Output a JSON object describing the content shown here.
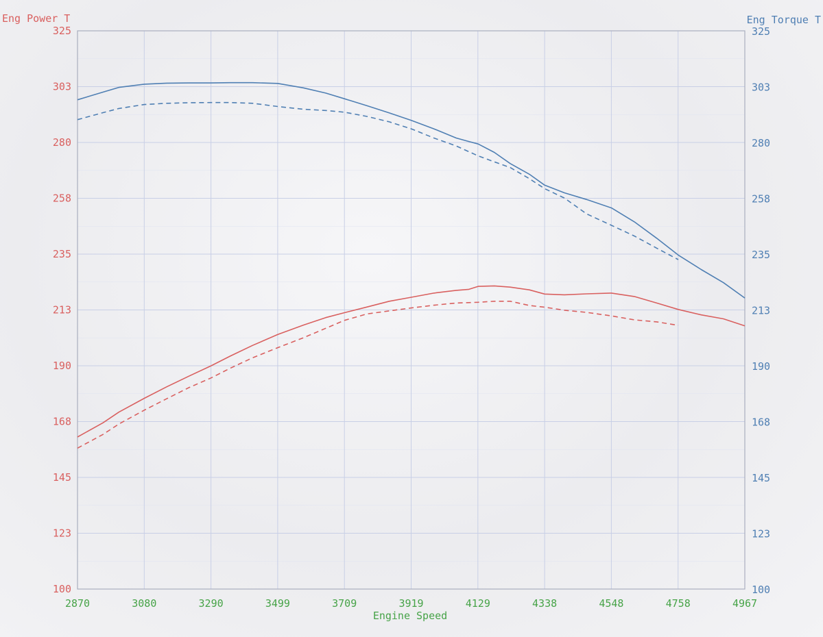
{
  "colors": {
    "power": "#d9605f",
    "torque": "#4f7fb3",
    "xaxis": "#46a347",
    "grid": "#c8cfe6",
    "axis": "#a9aebf"
  },
  "chart_data": {
    "type": "line",
    "title": "",
    "xlabel": "Engine Speed",
    "ylabel_left": "Eng Power T",
    "ylabel_right": "Eng Torque T",
    "xlim": [
      2870,
      4967
    ],
    "ylim_left": [
      100,
      325
    ],
    "ylim_right": [
      100,
      325
    ],
    "x_ticks": [
      "2870",
      "3080",
      "3290",
      "3499",
      "3709",
      "3919",
      "4129",
      "4338",
      "4548",
      "4758",
      "4967"
    ],
    "y_ticks_left": [
      "100",
      "123",
      "145",
      "168",
      "190",
      "213",
      "235",
      "258",
      "280",
      "303",
      "325"
    ],
    "y_ticks_right": [
      "100",
      "123",
      "145",
      "168",
      "190",
      "213",
      "235",
      "258",
      "280",
      "303",
      "325"
    ],
    "grid": true,
    "series": [
      {
        "axis": "right",
        "quantity": "torque",
        "style": "solid",
        "x": [
          2870,
          2950,
          3000,
          3080,
          3150,
          3220,
          3290,
          3350,
          3420,
          3499,
          3580,
          3650,
          3709,
          3780,
          3850,
          3919,
          3990,
          4060,
          4100,
          4129,
          4180,
          4230,
          4290,
          4338,
          4400,
          4470,
          4548,
          4620,
          4690,
          4758,
          4830,
          4900,
          4967
        ],
        "y": [
          297.2,
          300.3,
          302.2,
          303.5,
          303.9,
          304.0,
          304.0,
          304.1,
          304.1,
          303.8,
          302.0,
          299.9,
          297.6,
          294.8,
          291.9,
          288.9,
          285.5,
          281.8,
          280.4,
          279.4,
          276.0,
          271.5,
          267.2,
          262.8,
          259.7,
          257.0,
          253.6,
          248.0,
          241.4,
          234.6,
          228.8,
          223.5,
          217.3
        ]
      },
      {
        "axis": "right",
        "quantity": "torque",
        "style": "dashed",
        "x": [
          2870,
          2950,
          3000,
          3080,
          3150,
          3220,
          3290,
          3350,
          3420,
          3499,
          3580,
          3650,
          3709,
          3780,
          3850,
          3919,
          3990,
          4060,
          4129,
          4180,
          4230,
          4290,
          4338,
          4400,
          4470,
          4548,
          4620,
          4690,
          4758
        ],
        "y": [
          289.2,
          292.0,
          293.7,
          295.3,
          295.8,
          296.0,
          296.1,
          296.1,
          295.8,
          294.5,
          293.4,
          292.9,
          292.2,
          290.5,
          288.3,
          285.5,
          281.8,
          278.6,
          274.6,
          272.2,
          269.9,
          265.4,
          261.4,
          257.6,
          251.2,
          246.6,
          242.3,
          237.4,
          232.8
        ]
      },
      {
        "axis": "left",
        "quantity": "power",
        "style": "solid",
        "x": [
          2870,
          2950,
          3000,
          3080,
          3150,
          3220,
          3290,
          3350,
          3420,
          3499,
          3580,
          3650,
          3709,
          3780,
          3850,
          3919,
          3990,
          4060,
          4100,
          4129,
          4180,
          4230,
          4290,
          4338,
          4400,
          4470,
          4548,
          4620,
          4690,
          4758,
          4830,
          4900,
          4967
        ],
        "y": [
          161.3,
          167.0,
          171.3,
          176.9,
          181.5,
          185.8,
          190.0,
          193.9,
          198.2,
          202.6,
          206.4,
          209.4,
          211.4,
          213.7,
          216.0,
          217.6,
          219.3,
          220.4,
          220.8,
          222.0,
          222.2,
          221.7,
          220.6,
          218.9,
          218.6,
          219.0,
          219.3,
          217.9,
          215.3,
          212.7,
          210.5,
          208.9,
          206.1
        ]
      },
      {
        "axis": "left",
        "quantity": "power",
        "style": "dashed",
        "x": [
          2870,
          2950,
          3000,
          3080,
          3150,
          3220,
          3290,
          3350,
          3420,
          3499,
          3580,
          3650,
          3709,
          3780,
          3850,
          3919,
          3990,
          4060,
          4129,
          4180,
          4230,
          4290,
          4338,
          4400,
          4470,
          4548,
          4620,
          4690,
          4758
        ],
        "y": [
          156.8,
          162.3,
          166.5,
          172.1,
          176.7,
          181.2,
          185.1,
          189.0,
          193.2,
          197.3,
          201.3,
          205.1,
          208.3,
          210.9,
          212.1,
          213.3,
          214.4,
          215.3,
          215.6,
          216.0,
          216.0,
          214.3,
          213.6,
          212.4,
          211.5,
          210.1,
          208.5,
          207.7,
          206.3
        ]
      }
    ]
  }
}
